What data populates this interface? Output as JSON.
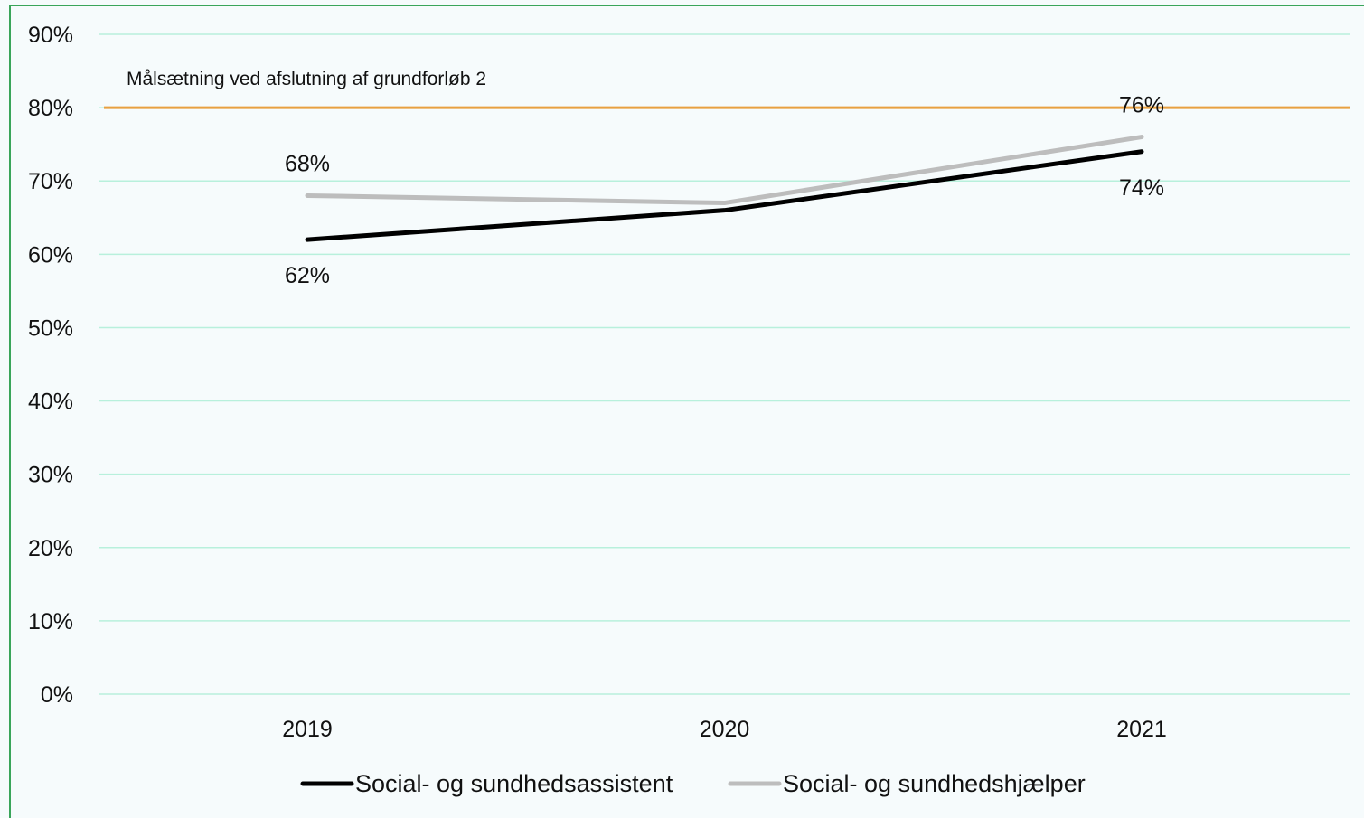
{
  "chart_data": {
    "type": "line",
    "title": "",
    "xlabel": "",
    "ylabel": "",
    "categories": [
      "2019",
      "2020",
      "2021"
    ],
    "ylim": [
      0,
      90
    ],
    "yticks": [
      "0%",
      "10%",
      "20%",
      "30%",
      "40%",
      "50%",
      "60%",
      "70%",
      "80%",
      "90%"
    ],
    "grid": true,
    "legend_position": "bottom",
    "series": [
      {
        "name": "Social- og sundhedsassistent",
        "values": [
          62,
          66,
          74
        ],
        "color": "#000000",
        "labels": [
          "62%",
          "",
          "74%"
        ]
      },
      {
        "name": "Social- og sundhedshjælper",
        "values": [
          68,
          67,
          76
        ],
        "color": "#bdbdbd",
        "labels": [
          "68%",
          "",
          "76%"
        ]
      }
    ],
    "target": {
      "value": 80,
      "label": "Målsætning ved afslutning af grundforløb 2",
      "color": "#e8a040"
    },
    "gridline_color": "#b8f0dc"
  }
}
